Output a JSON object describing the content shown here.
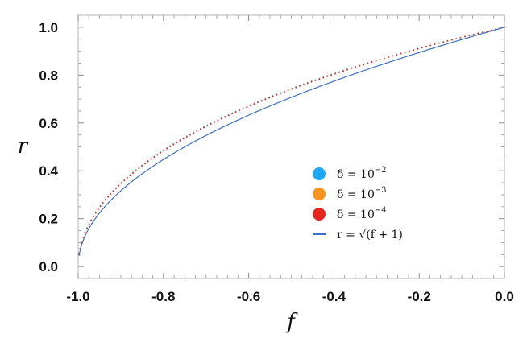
{
  "chart_data": {
    "type": "scatter",
    "xlabel": "f",
    "ylabel": "r",
    "xlim": [
      -1.0,
      0.0
    ],
    "ylim": [
      -0.05,
      1.05
    ],
    "xticks": [
      "-1.0",
      "-0.8",
      "-0.6",
      "-0.4",
      "-0.2",
      "0.0"
    ],
    "yticks": [
      "0.0",
      "0.2",
      "0.4",
      "0.6",
      "0.8",
      "1.0"
    ],
    "grid": false,
    "legend_position": "lower-right",
    "series": [
      {
        "name": "δ = 10^-2",
        "label_base": "δ = 10",
        "label_exp": "−2",
        "kind": "points",
        "color": "#1ea7f2",
        "offset_scale": 1.0
      },
      {
        "name": "δ = 10^-3",
        "label_base": "δ = 10",
        "label_exp": "−3",
        "kind": "points",
        "color": "#f7941d",
        "offset_scale": 0.95
      },
      {
        "name": "δ = 10^-4",
        "label_base": "δ = 10",
        "label_exp": "−4",
        "kind": "points",
        "color": "#e4261f",
        "offset_scale": 0.92
      },
      {
        "name": "r = √(f+1)",
        "label_text": "r = √(f + 1)",
        "kind": "line",
        "color": "#3c6fc0",
        "expression": "sqrt(f+1)"
      }
    ]
  }
}
